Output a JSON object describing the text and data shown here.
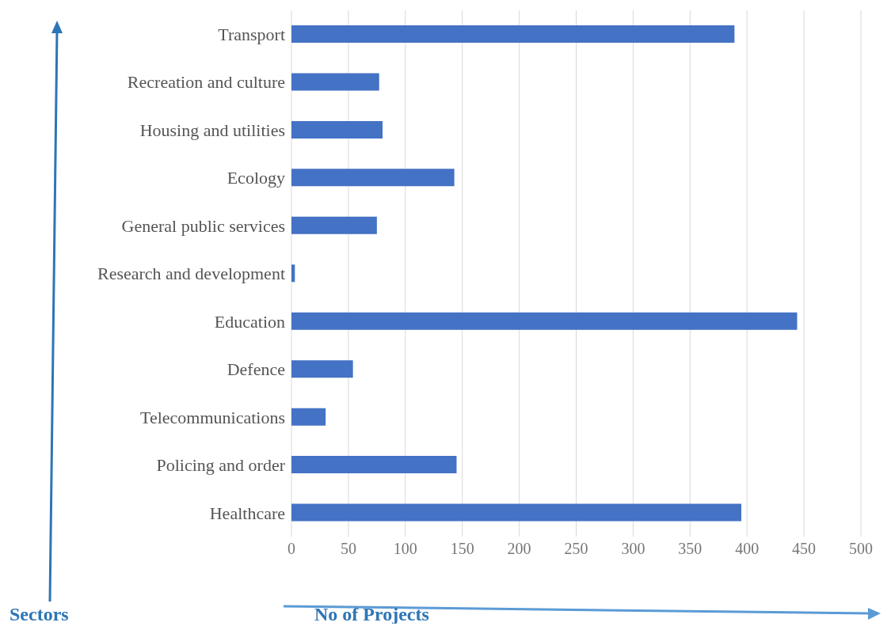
{
  "chart_data": {
    "type": "bar",
    "orientation": "horizontal",
    "xlabel": "No of Projects",
    "ylabel": "Sectors",
    "categories": [
      "Transport",
      "Recreation and culture",
      "Housing and utilities",
      "Ecology",
      "General public services",
      "Research and development",
      "Education",
      "Defence",
      "Telecommunications",
      "Policing and order",
      "Healthcare"
    ],
    "values": [
      389,
      77,
      80,
      143,
      75,
      3,
      444,
      54,
      30,
      145,
      395
    ],
    "color": "#4472c4",
    "xlim": [
      0,
      500
    ],
    "xticks": [
      0,
      50,
      100,
      150,
      200,
      250,
      300,
      350,
      400,
      450,
      500
    ],
    "grid": "x"
  }
}
